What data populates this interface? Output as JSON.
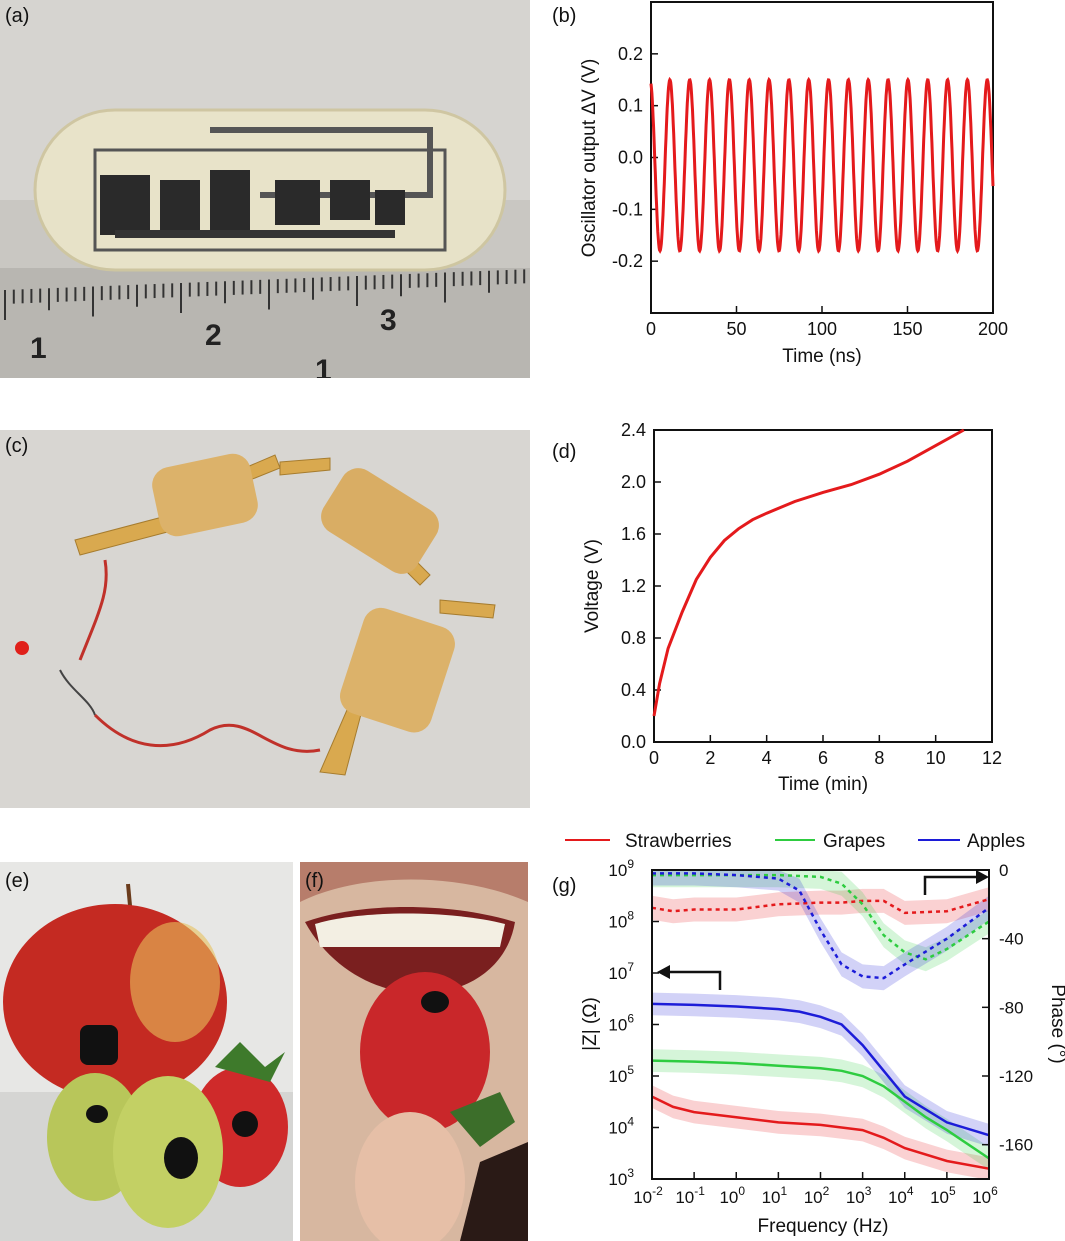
{
  "panels": {
    "a": {
      "label": "(a)",
      "ruler_numbers": [
        "1",
        "2",
        "3",
        "1"
      ]
    },
    "b": {
      "label": "(b)"
    },
    "c": {
      "label": "(c)"
    },
    "d": {
      "label": "(d)"
    },
    "e": {
      "label": "(e)"
    },
    "f": {
      "label": "(f)"
    },
    "g": {
      "label": "(g)"
    }
  },
  "chart_data": [
    {
      "panel": "b",
      "type": "line",
      "xlabel": "Time (ns)",
      "ylabel": "Oscillator output ΔV (V)",
      "xlim": [
        0,
        200
      ],
      "ylim": [
        -0.3,
        0.3
      ],
      "xticks": [
        "0",
        "50",
        "100",
        "150",
        "200"
      ],
      "yticks": [
        "-0.2",
        "-0.1",
        "0.0",
        "0.1",
        "0.2"
      ],
      "series": [
        {
          "color": "#e41a1c",
          "function": "sinusoid",
          "period_ns": 11.6,
          "max_V": 0.15,
          "min_V": -0.18
        }
      ],
      "grid": false
    },
    {
      "panel": "d",
      "type": "line",
      "xlabel": "Time (min)",
      "ylabel": "Voltage (V)",
      "xlim": [
        0,
        12
      ],
      "ylim": [
        0,
        2.4
      ],
      "xticks": [
        "0",
        "2",
        "4",
        "6",
        "8",
        "10",
        "12"
      ],
      "yticks": [
        "0.0",
        "0.4",
        "0.8",
        "1.2",
        "1.6",
        "2.0",
        "2.4"
      ],
      "series": [
        {
          "color": "#e41a1c",
          "x": [
            0,
            0.2,
            0.5,
            1,
            1.5,
            2,
            2.5,
            3,
            3.5,
            4,
            5,
            6,
            7,
            8,
            9,
            10,
            11
          ],
          "y": [
            0.2,
            0.45,
            0.72,
            1.0,
            1.25,
            1.42,
            1.55,
            1.64,
            1.71,
            1.76,
            1.85,
            1.92,
            1.98,
            2.06,
            2.16,
            2.28,
            2.4
          ]
        }
      ],
      "grid": false
    },
    {
      "panel": "g",
      "type": "line",
      "xlabel": "Frequency (Hz)",
      "ylabel": "|Z| (Ω)",
      "ylabel_right": "Phase (°)",
      "xscale": "log",
      "xlim": [
        0.01,
        1000000
      ],
      "ylim": [
        1000,
        1000000000
      ],
      "ylim_right": [
        -180,
        0
      ],
      "xtick_exponents": [
        "-2",
        "-1",
        "0",
        "1",
        "2",
        "3",
        "4",
        "5",
        "6"
      ],
      "ytick_exponents": [
        "3",
        "4",
        "5",
        "6",
        "7",
        "8",
        "9"
      ],
      "yticks_right": [
        "0",
        "-40",
        "-80",
        "-120",
        "-160"
      ],
      "legend": [
        "Strawberries",
        "Grapes",
        "Apples"
      ],
      "legend_position": "top",
      "series": [
        {
          "name": "Strawberries",
          "color": "#e41a1c",
          "log_f": [
            -2,
            -1.5,
            -1,
            0,
            1,
            2,
            2.5,
            3,
            3.5,
            4,
            5,
            6
          ],
          "log_Z": [
            4.6,
            4.4,
            4.3,
            4.2,
            4.1,
            4.05,
            4.0,
            3.95,
            3.8,
            3.6,
            3.35,
            3.2
          ],
          "phase": [
            -22,
            -24,
            -23,
            -23,
            -20,
            -19,
            -19,
            -18,
            -18,
            -25,
            -24,
            -17
          ]
        },
        {
          "name": "Grapes",
          "color": "#2ecc40",
          "log_f": [
            -2,
            -1,
            0,
            1,
            2,
            2.5,
            3,
            3.5,
            4,
            4.5,
            5,
            6
          ],
          "log_Z": [
            5.3,
            5.28,
            5.25,
            5.2,
            5.15,
            5.1,
            5.0,
            4.8,
            4.5,
            4.2,
            3.95,
            3.4
          ],
          "phase": [
            -3,
            -3,
            -3,
            -3,
            -4,
            -8,
            -20,
            -38,
            -48,
            -52,
            -46,
            -30
          ]
        },
        {
          "name": "Apples",
          "color": "#1c1cd8",
          "log_f": [
            -2,
            -1,
            0,
            1,
            1.5,
            2,
            2.5,
            3,
            3.5,
            4,
            5,
            6
          ],
          "log_Z": [
            6.4,
            6.38,
            6.35,
            6.3,
            6.25,
            6.15,
            6.0,
            5.6,
            5.1,
            4.6,
            4.1,
            3.85
          ],
          "phase": [
            -2,
            -2,
            -3,
            -5,
            -12,
            -35,
            -55,
            -62,
            -63,
            -55,
            -40,
            -22
          ]
        }
      ]
    }
  ]
}
